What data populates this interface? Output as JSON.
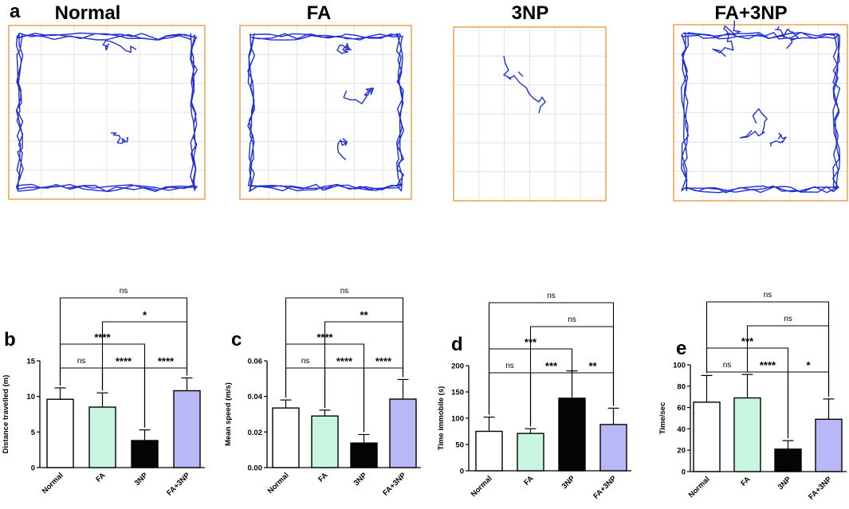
{
  "figure_letter_a": "a",
  "arena_titles": [
    "Normal",
    "FA",
    "3NP",
    "FA+3NP"
  ],
  "colors": {
    "track": "#1f2fd6",
    "arena_border": "#f0a050",
    "grid": "#dedede",
    "normal_fill": "#ffffff",
    "fa_fill": "#c8f5e0",
    "np_fill": "#050505",
    "fanp_fill": "#b9b8f7"
  },
  "chart_data": [
    {
      "type": "bar",
      "panel": "b",
      "categories": [
        "Normal",
        "FA",
        "3NP",
        "FA+3NP"
      ],
      "values": [
        9.6,
        8.5,
        3.8,
        10.8
      ],
      "errors": [
        1.6,
        2.0,
        1.5,
        1.8
      ],
      "ylabel": "Distance travelled (m)",
      "ylim": [
        0,
        15
      ],
      "yticks": [
        0,
        5,
        10,
        15
      ],
      "brackets": [
        {
          "from": 0,
          "to": 1,
          "label": "ns"
        },
        {
          "from": 1,
          "to": 2,
          "label": "****"
        },
        {
          "from": 2,
          "to": 3,
          "label": "****"
        },
        {
          "from": 0,
          "to": 2,
          "label": "****"
        },
        {
          "from": 1,
          "to": 3,
          "label": "*"
        },
        {
          "from": 0,
          "to": 3,
          "label": "ns"
        }
      ]
    },
    {
      "type": "bar",
      "panel": "c",
      "categories": [
        "Normal",
        "FA",
        "3NP",
        "FA+3NP"
      ],
      "values": [
        0.0335,
        0.029,
        0.0138,
        0.0385
      ],
      "errors": [
        0.0045,
        0.0033,
        0.0048,
        0.011
      ],
      "ylabel": "Mean speed (m/s)",
      "ylim": [
        0,
        0.06
      ],
      "yticks": [
        "0.00",
        "0.02",
        "0.04",
        "0.06"
      ],
      "brackets": [
        {
          "from": 0,
          "to": 1,
          "label": "ns"
        },
        {
          "from": 1,
          "to": 2,
          "label": "****"
        },
        {
          "from": 2,
          "to": 3,
          "label": "****"
        },
        {
          "from": 0,
          "to": 2,
          "label": "****"
        },
        {
          "from": 1,
          "to": 3,
          "label": "**"
        },
        {
          "from": 0,
          "to": 3,
          "label": "ns"
        }
      ]
    },
    {
      "type": "bar",
      "panel": "d",
      "categories": [
        "Normal",
        "FA",
        "3NP",
        "FA+3NP"
      ],
      "values": [
        75,
        71,
        138,
        88
      ],
      "errors": [
        27,
        9,
        52,
        31
      ],
      "ylabel": "Time immobile (s)",
      "ylim": [
        0,
        200
      ],
      "yticks": [
        0,
        50,
        100,
        150,
        200
      ],
      "brackets": [
        {
          "from": 0,
          "to": 1,
          "label": "ns"
        },
        {
          "from": 1,
          "to": 2,
          "label": "***"
        },
        {
          "from": 2,
          "to": 3,
          "label": "**"
        },
        {
          "from": 0,
          "to": 2,
          "label": "***"
        },
        {
          "from": 1,
          "to": 3,
          "label": "ns"
        },
        {
          "from": 0,
          "to": 3,
          "label": "ns"
        }
      ]
    },
    {
      "type": "bar",
      "panel": "e",
      "categories": [
        "Normal",
        "FA",
        "3NP",
        "FA+3NP"
      ],
      "values": [
        65,
        69,
        21,
        49
      ],
      "errors": [
        25,
        22,
        8,
        19
      ],
      "ylabel": "Time/sec",
      "ylim": [
        0,
        100
      ],
      "yticks": [
        0,
        20,
        40,
        60,
        80,
        100
      ],
      "brackets": [
        {
          "from": 0,
          "to": 1,
          "label": "ns"
        },
        {
          "from": 1,
          "to": 2,
          "label": "****"
        },
        {
          "from": 2,
          "to": 3,
          "label": "*"
        },
        {
          "from": 0,
          "to": 2,
          "label": "***"
        },
        {
          "from": 1,
          "to": 3,
          "label": "ns"
        },
        {
          "from": 0,
          "to": 3,
          "label": "ns"
        }
      ]
    }
  ]
}
